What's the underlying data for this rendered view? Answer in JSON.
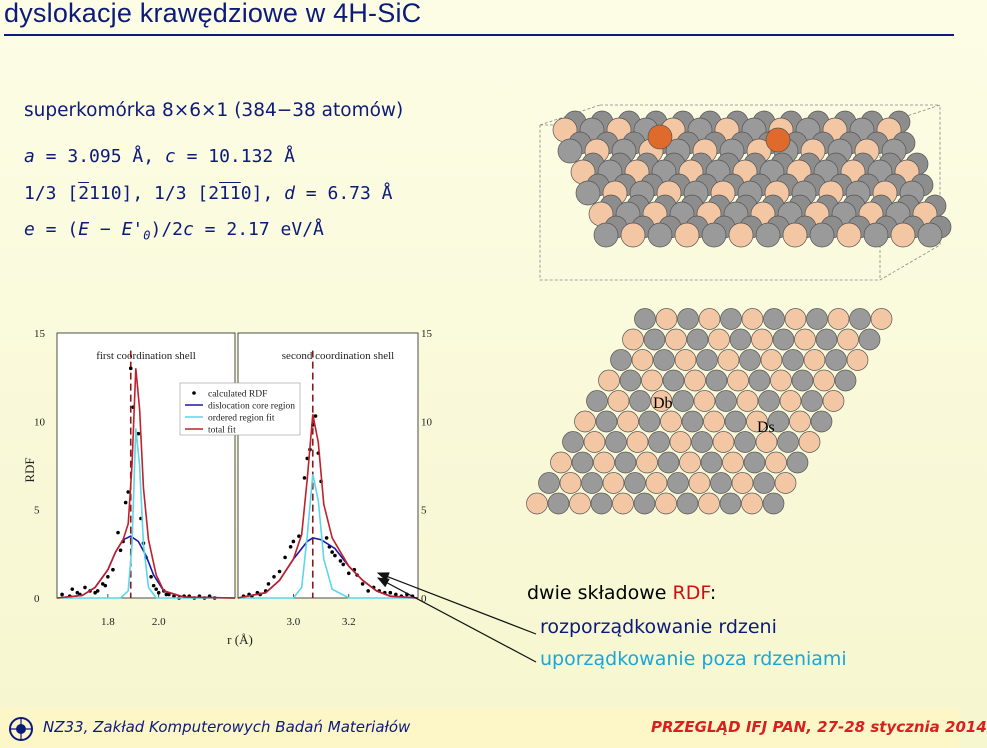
{
  "slide": {
    "title": "dyslokacje krawędziowe w 4H-SiC"
  },
  "params": {
    "supercell": "superkomórka 8×6×1 (384−38 atomów)",
    "lattice_a_sym": "a",
    "lattice_a_val": " = 3.095 Å,  ",
    "lattice_c_sym": "c",
    "lattice_c_val": " = 10.132 Å",
    "burgers_1": "1/3 [",
    "burgers_1_bar": "2",
    "burgers_1_rest": "110],  1/3 [2",
    "burgers_2_bar": "11",
    "burgers_2_rest": "0],  ",
    "burgers_d_sym": "d",
    "burgers_d_val": " = 6.73 Å",
    "energy_e": "e",
    "energy_eq1": " = (",
    "energy_E": "E",
    "energy_minus": " − ",
    "energy_E0": "E'",
    "energy_sub": "0",
    "energy_rest": ")/2",
    "energy_c": "c",
    "energy_val": " = 2.17 eV/Å"
  },
  "lattice_labels": {
    "db": "Db",
    "ds": "Ds"
  },
  "chart_data": {
    "type": "scatter",
    "ylabel": "RDF",
    "xlabel": "r (Å)",
    "ylim": [
      0,
      15
    ],
    "yticks": [
      "0",
      "5",
      "10",
      "15"
    ],
    "panels": [
      {
        "title": "first coordination shell",
        "xlim": [
          1.6,
          2.3
        ],
        "xticks": [
          "1.8",
          "2.0"
        ],
        "peak_marker": 1.89,
        "series": [
          {
            "name": "calculated RDF",
            "type": "points",
            "x": [
              1.62,
              1.65,
              1.66,
              1.68,
              1.69,
              1.71,
              1.73,
              1.75,
              1.76,
              1.78,
              1.79,
              1.8,
              1.82,
              1.84,
              1.85,
              1.86,
              1.87,
              1.88,
              1.89,
              1.9,
              1.92,
              1.93,
              1.94,
              1.95,
              1.97,
              1.98,
              1.99,
              2.0,
              2.02,
              2.03,
              2.04,
              2.06,
              2.08,
              2.1,
              2.12,
              2.14,
              2.16,
              2.18,
              2.2,
              2.22
            ],
            "y": [
              0.2,
              0.1,
              0.5,
              0.3,
              0.2,
              0.6,
              0.4,
              0.3,
              0.4,
              0.8,
              0.7,
              1.2,
              1.6,
              3.7,
              2.7,
              3.2,
              5.4,
              6.0,
              13.0,
              10.8,
              9.3,
              4.5,
              3.1,
              2.3,
              1.2,
              0.7,
              0.5,
              0.3,
              0.4,
              0.2,
              0.2,
              0.1,
              0.0,
              0.1,
              0.1,
              0.0,
              0.1,
              0.0,
              0.1,
              0.0
            ]
          },
          {
            "name": "dislocation core region",
            "type": "line",
            "x": [
              1.6,
              1.7,
              1.75,
              1.8,
              1.83,
              1.86,
              1.89,
              1.92,
              1.95,
              1.98,
              2.02,
              2.1,
              2.3
            ],
            "y": [
              0,
              0.15,
              0.6,
              1.6,
              2.6,
              3.3,
              3.5,
              3.2,
              2.4,
              1.3,
              0.4,
              0.05,
              0
            ]
          },
          {
            "name": "ordered region fit",
            "type": "line",
            "x": [
              1.6,
              1.85,
              1.88,
              1.895,
              1.91,
              1.925,
              1.94,
              1.96,
              1.99,
              2.3
            ],
            "y": [
              0,
              0,
              0.4,
              3.0,
              9.6,
              7.5,
              3.0,
              0.6,
              0,
              0
            ]
          },
          {
            "name": "total fit",
            "type": "line",
            "x": [
              1.6,
              1.7,
              1.75,
              1.8,
              1.83,
              1.86,
              1.88,
              1.895,
              1.91,
              1.925,
              1.94,
              1.96,
              1.99,
              2.02,
              2.1,
              2.3
            ],
            "y": [
              0,
              0.15,
              0.6,
              1.6,
              2.6,
              3.3,
              4.2,
              7.5,
              13.0,
              10.7,
              6.2,
              3.3,
              1.3,
              0.4,
              0.05,
              0
            ]
          }
        ]
      },
      {
        "title": "second coordination shell",
        "xlim": [
          2.8,
          3.45
        ],
        "xticks": [
          "3.0",
          "3.2"
        ],
        "peak_marker": 3.07,
        "series": [
          {
            "name": "calculated RDF",
            "type": "points",
            "x": [
              2.82,
              2.84,
              2.85,
              2.87,
              2.88,
              2.9,
              2.91,
              2.93,
              2.95,
              2.97,
              2.99,
              3.0,
              3.02,
              3.04,
              3.05,
              3.06,
              3.07,
              3.08,
              3.09,
              3.1,
              3.12,
              3.13,
              3.14,
              3.15,
              3.17,
              3.18,
              3.2,
              3.22,
              3.23,
              3.25,
              3.27,
              3.29,
              3.31,
              3.33,
              3.35,
              3.37,
              3.39,
              3.41,
              3.43
            ],
            "y": [
              0.1,
              0.2,
              0.1,
              0.3,
              0.2,
              0.4,
              0.8,
              1.2,
              1.5,
              2.3,
              2.9,
              3.2,
              3.5,
              6.8,
              7.9,
              8.4,
              9.8,
              10.3,
              8.2,
              6.6,
              3.4,
              2.9,
              2.6,
              2.4,
              2.1,
              1.9,
              1.4,
              1.6,
              1.3,
              0.8,
              0.4,
              0.6,
              0.4,
              0.3,
              0.3,
              0.2,
              0.1,
              0.2,
              0.1
            ]
          },
          {
            "name": "dislocation core region",
            "type": "line",
            "x": [
              2.8,
              2.9,
              2.95,
              3.0,
              3.05,
              3.07,
              3.1,
              3.15,
              3.2,
              3.25,
              3.3,
              3.35,
              3.45
            ],
            "y": [
              0,
              0.3,
              1.0,
              2.2,
              3.2,
              3.4,
              3.3,
              2.8,
              1.8,
              1.0,
              0.4,
              0.1,
              0
            ]
          },
          {
            "name": "ordered region fit",
            "type": "line",
            "x": [
              2.8,
              3.0,
              3.03,
              3.05,
              3.07,
              3.09,
              3.11,
              3.14,
              3.2,
              3.45
            ],
            "y": [
              0,
              0,
              0.6,
              3.5,
              7.0,
              5.5,
              2.2,
              0.5,
              0,
              0
            ]
          },
          {
            "name": "total fit",
            "type": "line",
            "x": [
              2.8,
              2.9,
              2.95,
              3.0,
              3.03,
              3.05,
              3.07,
              3.09,
              3.11,
              3.14,
              3.2,
              3.25,
              3.3,
              3.35,
              3.45
            ],
            "y": [
              0,
              0.3,
              1.0,
              2.2,
              3.6,
              6.7,
              10.4,
              8.8,
              5.3,
              3.4,
              1.8,
              1.0,
              0.4,
              0.1,
              0
            ]
          }
        ]
      }
    ],
    "legend": [
      "calculated RDF",
      "dislocation core region",
      "ordered region fit",
      "total fit"
    ],
    "legend_position": "top-right of left panel",
    "colors": {
      "calculated RDF": "#000000",
      "dislocation core region": "#1a1aa8",
      "ordered region fit": "#5cd6e8",
      "total fit": "#c0202a"
    }
  },
  "note": {
    "title_pre": "dwie składowe ",
    "title_rdf": "RDF",
    "title_post": ":",
    "core": "rozporządkowanie rdzeni",
    "outer": "uporządkowanie poza rdzeniami"
  },
  "footer": {
    "left": "NZ33, Zakład Komputerowych Badań Materiałów",
    "right": "PRZEGLĄD IFJ PAN,  27-28 stycznia 2014",
    "bar_color": "#fdf7c8"
  }
}
